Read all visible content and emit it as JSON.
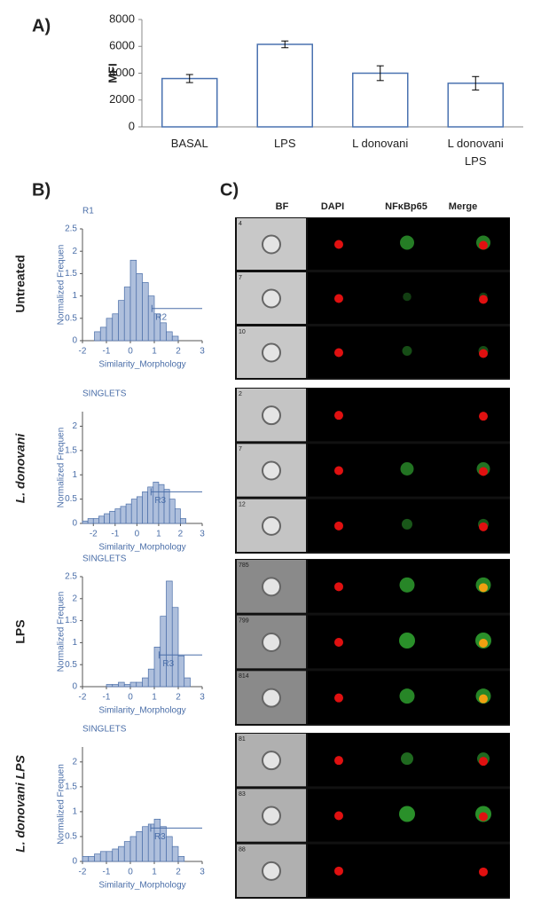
{
  "panels": {
    "a": "A)",
    "b": "B)",
    "c": "C)"
  },
  "row_labels": [
    "Untreated",
    "L. donovani",
    "LPS",
    "L. donovani LPS"
  ],
  "panel_c": {
    "columns": [
      "BF",
      "DAPI",
      "NFκBp65",
      "Merge"
    ],
    "groups": [
      {
        "frames": [
          "4",
          "7",
          "10"
        ]
      },
      {
        "frames": [
          "2",
          "7",
          "12"
        ]
      },
      {
        "frames": [
          "785",
          "799",
          "814"
        ]
      },
      {
        "frames": [
          "81",
          "83",
          "88"
        ]
      }
    ]
  },
  "chart_data": [
    {
      "type": "bar",
      "ylabel": "MFI",
      "categories": [
        "BASAL",
        "LPS",
        "L donovani",
        "L donovani\nLPS"
      ],
      "values": [
        3600,
        6150,
        4000,
        3250
      ],
      "errors": [
        300,
        250,
        550,
        500
      ],
      "color": "#4a72b0",
      "ylim": [
        0,
        8000
      ],
      "yticks": [
        0,
        2000,
        4000,
        6000,
        8000
      ]
    },
    {
      "type": "histogram",
      "title": "R1",
      "xlabel": "Similarity_Morphology",
      "ylabel": "Normalized Frequen",
      "color": "#4a6ea8",
      "bins": [
        -1.5,
        -1.25,
        -1,
        -0.75,
        -0.5,
        -0.25,
        0,
        0.25,
        0.5,
        0.75,
        1,
        1.25,
        1.5,
        1.75,
        2
      ],
      "counts": [
        0.2,
        0.3,
        0.5,
        0.6,
        0.9,
        1.2,
        1.8,
        1.5,
        1.3,
        1.0,
        0.6,
        0.4,
        0.2,
        0.1
      ],
      "xlim": [
        -2,
        3
      ],
      "ylim": [
        0,
        2.5
      ],
      "xticks": [
        -2,
        -1,
        0,
        1,
        2,
        3
      ],
      "yticks": [
        0,
        0.5,
        1,
        1.5,
        2,
        2.5
      ],
      "gate": {
        "label": "R2",
        "x": [
          0.9,
          3
        ],
        "y": 0.72
      }
    },
    {
      "type": "histogram",
      "title": "SINGLETS",
      "xlabel": "Similarity_Morphology",
      "ylabel": "Normalized Frequen",
      "color": "#4a6ea8",
      "bins": [
        -2.5,
        -2.25,
        -2,
        -1.75,
        -1.5,
        -1.25,
        -1,
        -0.75,
        -0.5,
        -0.25,
        0,
        0.25,
        0.5,
        0.75,
        1,
        1.25,
        1.5,
        1.75,
        2,
        2.25
      ],
      "counts": [
        0.05,
        0.1,
        0.1,
        0.15,
        0.2,
        0.25,
        0.3,
        0.35,
        0.4,
        0.5,
        0.55,
        0.65,
        0.75,
        0.85,
        0.8,
        0.7,
        0.5,
        0.3,
        0.1
      ],
      "xlim": [
        -2.5,
        3
      ],
      "ylim": [
        0,
        2.3
      ],
      "xticks": [
        -2,
        -1,
        0,
        1,
        2,
        3
      ],
      "yticks": [
        0,
        0.5,
        1,
        1.5,
        2
      ],
      "gate": {
        "label": "R3",
        "x": [
          0.65,
          3
        ],
        "y": 0.65
      }
    },
    {
      "type": "histogram",
      "title": "SINGLETS",
      "xlabel": "Similarity_Morphology",
      "ylabel": "Normalized Frequen",
      "color": "#4a6ea8",
      "bins": [
        -1,
        -0.75,
        -0.5,
        -0.25,
        0,
        0.25,
        0.5,
        0.75,
        1,
        1.25,
        1.5,
        1.75,
        2,
        2.25,
        2.5
      ],
      "counts": [
        0.05,
        0.05,
        0.1,
        0.05,
        0.1,
        0.1,
        0.2,
        0.4,
        0.9,
        1.6,
        2.4,
        1.8,
        0.7,
        0.2
      ],
      "xlim": [
        -2,
        3
      ],
      "ylim": [
        0,
        2.5
      ],
      "xticks": [
        -2,
        -1,
        0,
        1,
        2,
        3
      ],
      "yticks": [
        0,
        0.5,
        1,
        1.5,
        2,
        2.5
      ],
      "gate": {
        "label": "R3",
        "x": [
          1.2,
          3
        ],
        "y": 0.72
      }
    },
    {
      "type": "histogram",
      "title": "SINGLETS",
      "xlabel": "Similarity_Morphology",
      "ylabel": "Normalized Frequen",
      "color": "#4a6ea8",
      "bins": [
        -2,
        -1.75,
        -1.5,
        -1.25,
        -1,
        -0.75,
        -0.5,
        -0.25,
        0,
        0.25,
        0.5,
        0.75,
        1,
        1.25,
        1.5,
        1.75,
        2,
        2.25
      ],
      "counts": [
        0.1,
        0.1,
        0.15,
        0.2,
        0.2,
        0.25,
        0.3,
        0.4,
        0.5,
        0.6,
        0.7,
        0.75,
        0.85,
        0.7,
        0.5,
        0.3,
        0.1
      ],
      "xlim": [
        -2,
        3
      ],
      "ylim": [
        0,
        2.3
      ],
      "xticks": [
        -2,
        -1,
        0,
        1,
        2,
        3
      ],
      "yticks": [
        0,
        0.5,
        1,
        1.5,
        2
      ],
      "gate": {
        "label": "R3",
        "x": [
          0.85,
          3
        ],
        "y": 0.67
      }
    }
  ]
}
